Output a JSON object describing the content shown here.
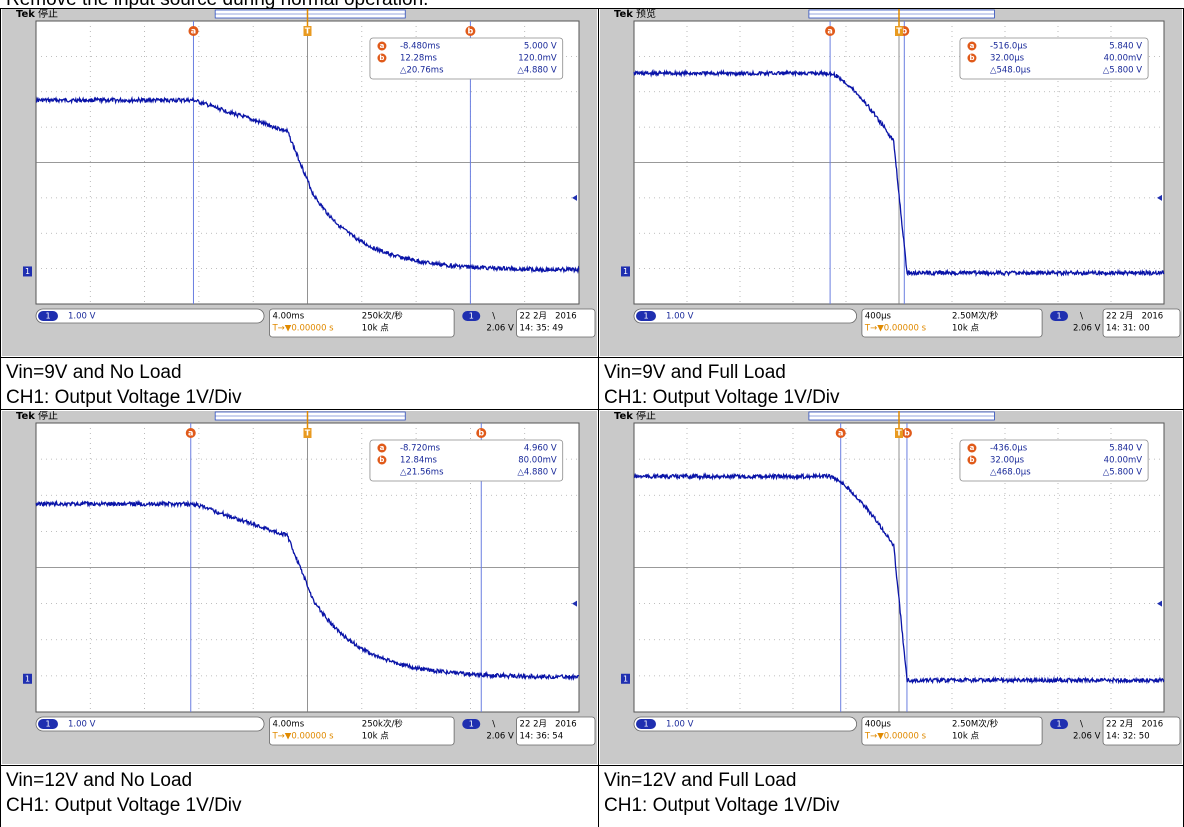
{
  "heading": "Remove the input source during normal operation.",
  "panels": [
    {
      "brand": "Tek",
      "state": "停止",
      "cursor_labels": [
        "a",
        "b"
      ],
      "trigger_icon": "T",
      "channel": "1",
      "cursor_a_time": "-8.480ms",
      "cursor_a_volt": "5.000 V",
      "cursor_b_time": "12.28ms",
      "cursor_b_volt": "120.0mV",
      "delta_time": "△20.76ms",
      "delta_volt": "△4.880 V",
      "ch1_scale": "1.00 V",
      "timebase": "4.00ms",
      "trigger_pos": "T→▼0.00000 s",
      "sample_rate": "250k次/秒",
      "record_length": "10k 点",
      "trigger_slope": "\\",
      "trigger_level": "2.06 V",
      "date": "22 2月   2016",
      "time": "14: 35: 49",
      "caption_1": "Vin=9V and No Load",
      "caption_2": "CH1: Output Voltage 1V/Div"
    },
    {
      "brand": "Tek",
      "state": "预览",
      "cursor_labels": [
        "a",
        "b"
      ],
      "trigger_icon": "T",
      "channel": "1",
      "cursor_a_time": "-516.0µs",
      "cursor_a_volt": "5.840 V",
      "cursor_b_time": "32.00µs",
      "cursor_b_volt": "40.00mV",
      "delta_time": "△548.0µs",
      "delta_volt": "△5.800 V",
      "ch1_scale": "1.00 V",
      "timebase": "400µs",
      "trigger_pos": "T→▼0.00000 s",
      "sample_rate": "2.50M次/秒",
      "record_length": "10k 点",
      "trigger_slope": "\\",
      "trigger_level": "2.06 V",
      "date": "22 2月   2016",
      "time": "14: 31: 00",
      "caption_1": "Vin=9V and Full Load",
      "caption_2": "CH1: Output Voltage 1V/Div"
    },
    {
      "brand": "Tek",
      "state": "停止",
      "cursor_labels": [
        "a",
        "b"
      ],
      "trigger_icon": "T",
      "channel": "1",
      "cursor_a_time": "-8.720ms",
      "cursor_a_volt": "4.960 V",
      "cursor_b_time": "12.84ms",
      "cursor_b_volt": "80.00mV",
      "delta_time": "△21.56ms",
      "delta_volt": "△4.880 V",
      "ch1_scale": "1.00 V",
      "timebase": "4.00ms",
      "trigger_pos": "T→▼0.00000 s",
      "sample_rate": "250k次/秒",
      "record_length": "10k 点",
      "trigger_slope": "\\",
      "trigger_level": "2.06 V",
      "date": "22 2月   2016",
      "time": "14: 36: 54",
      "caption_1": "Vin=12V and No Load",
      "caption_2": "CH1: Output Voltage 1V/Div"
    },
    {
      "brand": "Tek",
      "state": "停止",
      "cursor_labels": [
        "a",
        "b"
      ],
      "trigger_icon": "T",
      "channel": "1",
      "cursor_a_time": "-436.0µs",
      "cursor_a_volt": "5.840 V",
      "cursor_b_time": "32.00µs",
      "cursor_b_volt": "40.00mV",
      "delta_time": "△468.0µs",
      "delta_volt": "△5.800 V",
      "ch1_scale": "1.00 V",
      "timebase": "400µs",
      "trigger_pos": "T→▼0.00000 s",
      "sample_rate": "2.50M次/秒",
      "record_length": "10k 点",
      "trigger_slope": "\\",
      "trigger_level": "2.06 V",
      "date": "22 2月   2016",
      "time": "14: 32: 50",
      "caption_1": "Vin=12V and Full Load",
      "caption_2": "CH1: Output Voltage 1V/Div"
    }
  ]
}
